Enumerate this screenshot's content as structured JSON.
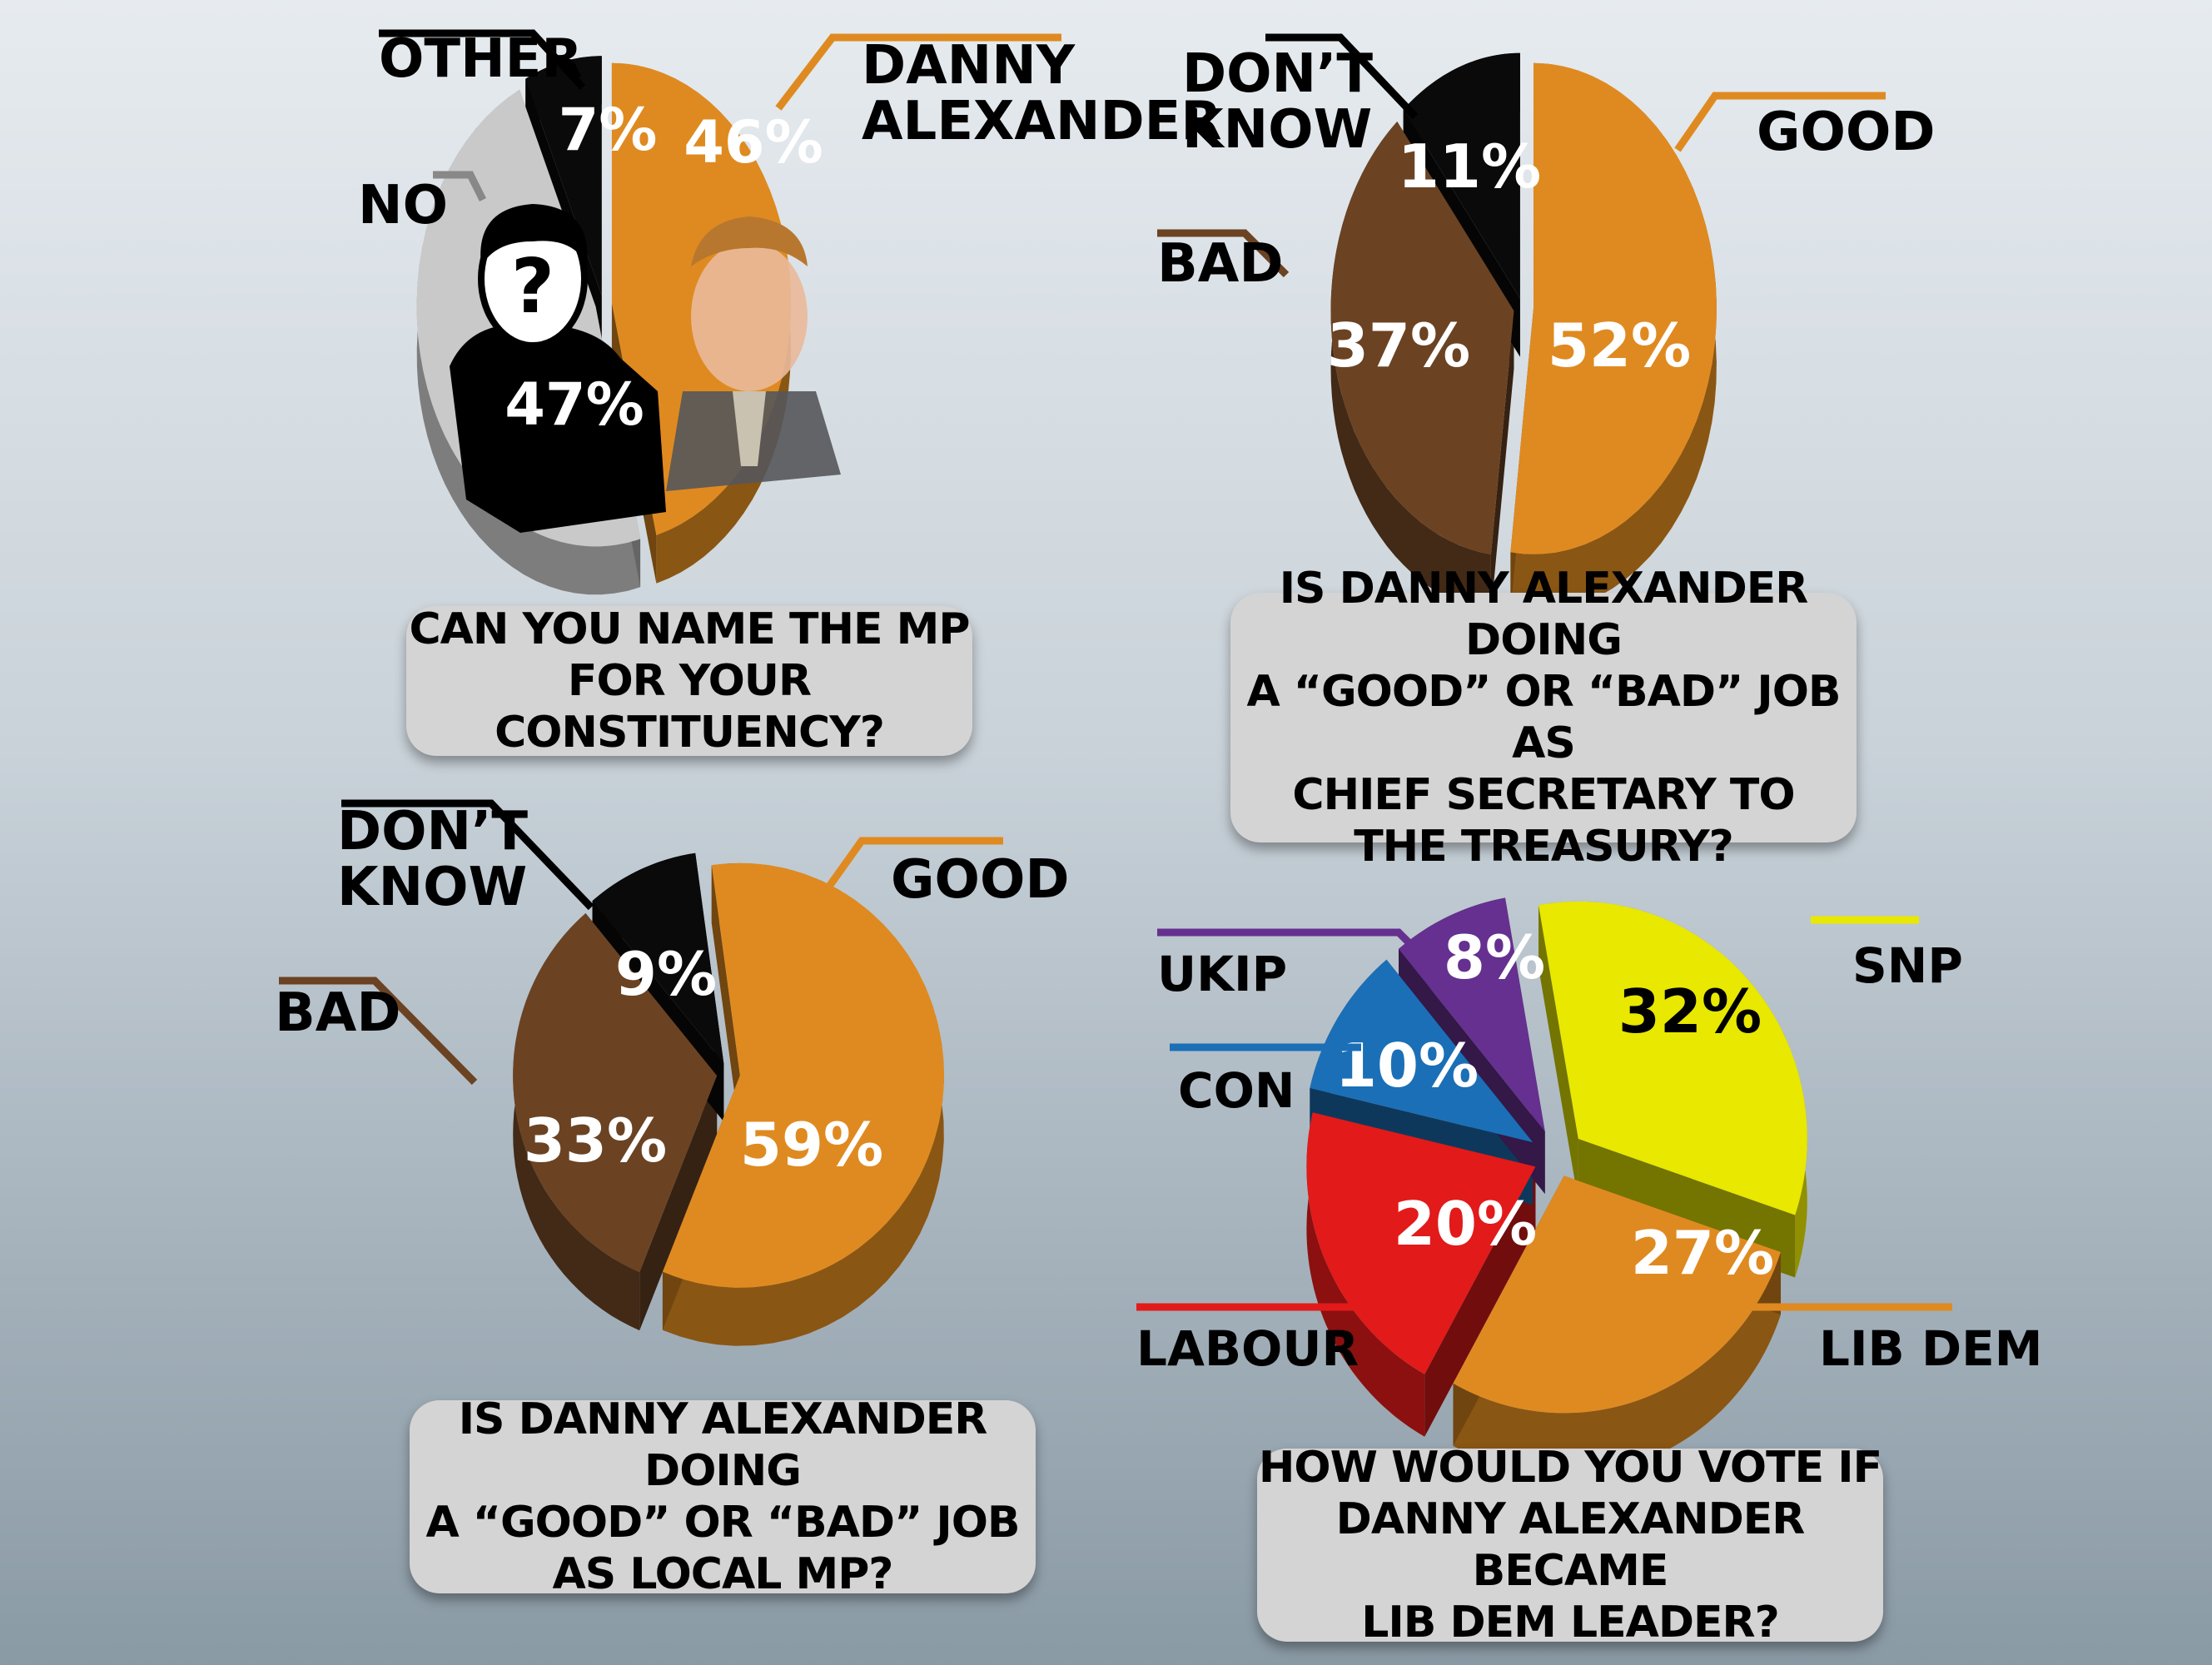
{
  "colors": {
    "orange": "#df8a20",
    "brown": "#6b4323",
    "black": "#0a0a0a",
    "grey": "#c9c9c9",
    "yellow": "#e8e800",
    "red": "#e21a1a",
    "blue": "#1b6fb6",
    "purple": "#65308f"
  },
  "chart_data": [
    {
      "type": "pie",
      "question": "CAN YOU NAME THE MP\nFOR YOUR CONSTITUENCY?",
      "slices": [
        {
          "label": "DANNY\nALEXANDER",
          "value": 46,
          "display": "46%",
          "color": "#df8a20"
        },
        {
          "label": "NO",
          "value": 47,
          "display": "47%",
          "color": "#c9c9c9"
        },
        {
          "label": "OTHER",
          "value": 7,
          "display": "7%",
          "color": "#0a0a0a"
        }
      ]
    },
    {
      "type": "pie",
      "question": "IS DANNY ALEXANDER DOING\nA “GOOD” OR “BAD” JOB AS\nCHIEF SECRETARY TO\nTHE TREASURY?",
      "slices": [
        {
          "label": "GOOD",
          "value": 52,
          "display": "52%",
          "color": "#df8a20"
        },
        {
          "label": "BAD",
          "value": 37,
          "display": "37%",
          "color": "#6b4323"
        },
        {
          "label": "DON’T\nKNOW",
          "value": 11,
          "display": "11%",
          "color": "#0a0a0a"
        }
      ]
    },
    {
      "type": "pie",
      "question": "IS DANNY ALEXANDER DOING\nA “GOOD” OR “BAD” JOB\nAS LOCAL MP?",
      "slices": [
        {
          "label": "GOOD",
          "value": 59,
          "display": "59%",
          "color": "#df8a20"
        },
        {
          "label": "BAD",
          "value": 33,
          "display": "33%",
          "color": "#6b4323"
        },
        {
          "label": "DON’T\nKNOW",
          "value": 9,
          "display": "9%",
          "color": "#0a0a0a"
        }
      ]
    },
    {
      "type": "pie",
      "question": "HOW WOULD YOU VOTE IF\nDANNY ALEXANDER BECAME\nLIB DEM LEADER?",
      "slices": [
        {
          "label": "SNP",
          "value": 32,
          "display": "32%",
          "color": "#e8e800"
        },
        {
          "label": "LIB DEM",
          "value": 27,
          "display": "27%",
          "color": "#df8a20"
        },
        {
          "label": "LABOUR",
          "value": 20,
          "display": "20%",
          "color": "#e21a1a"
        },
        {
          "label": "CON",
          "value": 10,
          "display": "10%",
          "color": "#1b6fb6"
        },
        {
          "label": "UKIP",
          "value": 8,
          "display": "8%",
          "color": "#65308f"
        }
      ]
    }
  ]
}
